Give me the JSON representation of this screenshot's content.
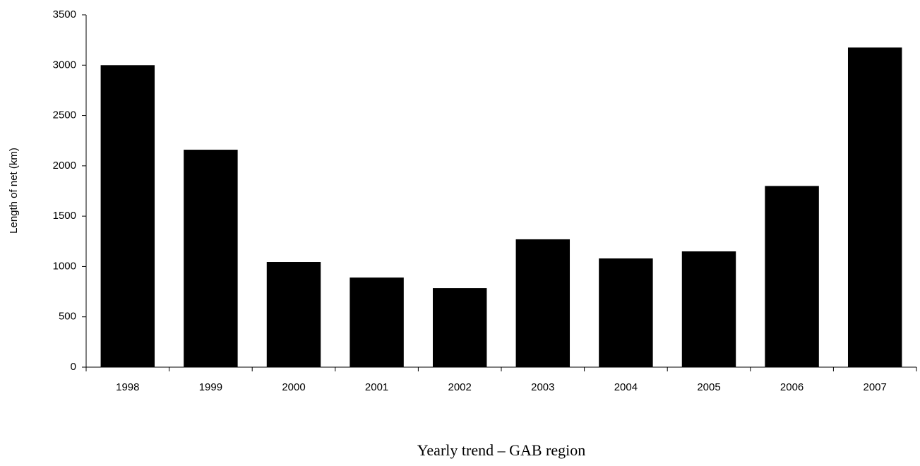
{
  "chart_data": {
    "type": "bar",
    "title": "Yearly trend – GAB region",
    "y_label": "Length of net (km)",
    "categories": [
      "1998",
      "1999",
      "2000",
      "2001",
      "2002",
      "2003",
      "2004",
      "2005",
      "2006",
      "2007"
    ],
    "values": [
      3000,
      2160,
      1045,
      890,
      785,
      1270,
      1080,
      1150,
      1800,
      3175
    ],
    "color": "#000000",
    "ylim": [
      0,
      3500
    ],
    "yticks": [
      0,
      500,
      1000,
      1500,
      2000,
      2500,
      3000,
      3500
    ],
    "grid": false
  }
}
